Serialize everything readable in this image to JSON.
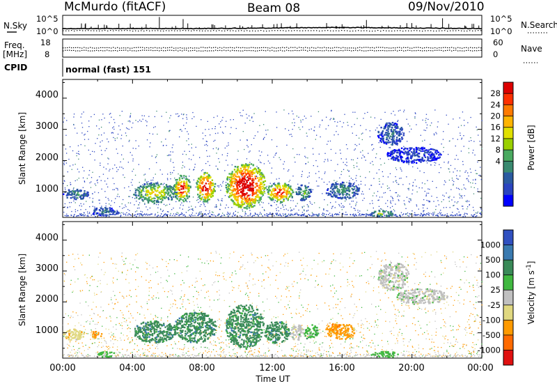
{
  "header": {
    "station": "McMurdo (fitACF)",
    "beam": "Beam 08",
    "date": "09/Nov/2010"
  },
  "panels": {
    "nsky_label": "N.Sky",
    "nsearch_label": "N.Search",
    "freq_label_line1": "Freq.",
    "freq_label_line2": "[MHz]",
    "nave_label": "Nave",
    "cpid_label": "CPID",
    "cpid_value": "normal (fast) 151",
    "nsky_ticks": [
      "10^5",
      "10^0"
    ],
    "nsearch_ticks": [
      "10^5",
      "10^0"
    ],
    "freq_ticks": [
      "18",
      "8"
    ],
    "nave_ticks": [
      "60",
      "0"
    ]
  },
  "axes": {
    "ylabel": "Slant Range [km]",
    "yticks": [
      "4000",
      "3000",
      "2000",
      "1000"
    ],
    "xlabel": "Time UT",
    "xticks": [
      "00:00",
      "04:00",
      "08:00",
      "12:00",
      "16:00",
      "20:00",
      "00:00"
    ]
  },
  "chart_data": [
    {
      "type": "heatmap",
      "title": "",
      "xlabel": "Time UT",
      "ylabel": "Slant Range [km]",
      "xlim_hours": [
        0,
        24
      ],
      "ylim_km": [
        180,
        4600
      ],
      "colorbar": {
        "label": "Power [dB]",
        "ticks": [
          "28",
          "24",
          "20",
          "16",
          "12",
          "8",
          "4"
        ],
        "colors": [
          "#dd0000",
          "#ff3000",
          "#ff7a00",
          "#ffb400",
          "#e0e000",
          "#9ad000",
          "#4aaa60",
          "#3a8a70",
          "#2a5aa0",
          "#2a44c0",
          "#0000ff"
        ]
      },
      "regions": [
        {
          "t": [
            0.0,
            1.5
          ],
          "r": [
            780,
            1120
          ],
          "level": 3
        },
        {
          "t": [
            1.5,
            3.2
          ],
          "r": [
            260,
            520
          ],
          "level": 2
        },
        {
          "t": [
            4.0,
            6.5
          ],
          "r": [
            650,
            1320
          ],
          "level": 6
        },
        {
          "t": [
            6.3,
            7.3
          ],
          "r": [
            700,
            1560
          ],
          "level": 9
        },
        {
          "t": [
            7.6,
            8.7
          ],
          "r": [
            700,
            1650
          ],
          "level": 10
        },
        {
          "t": [
            9.3,
            11.6
          ],
          "r": [
            480,
            1950
          ],
          "level": 11
        },
        {
          "t": [
            11.6,
            13.2
          ],
          "r": [
            680,
            1320
          ],
          "level": 9
        },
        {
          "t": [
            13.3,
            14.2
          ],
          "r": [
            740,
            1260
          ],
          "level": 4
        },
        {
          "t": [
            15.0,
            17.0
          ],
          "r": [
            800,
            1340
          ],
          "level": 3
        },
        {
          "t": [
            18.0,
            19.5
          ],
          "r": [
            2500,
            3250
          ],
          "level": 2
        },
        {
          "t": [
            18.5,
            21.7
          ],
          "r": [
            1950,
            2450
          ],
          "level": 1
        },
        {
          "t": [
            17.6,
            19.0
          ],
          "r": [
            220,
            440
          ],
          "level": 5
        }
      ]
    },
    {
      "type": "heatmap",
      "title": "",
      "xlabel": "Time UT",
      "ylabel": "Slant Range [km]",
      "xlim_hours": [
        0,
        24
      ],
      "ylim_km": [
        180,
        4600
      ],
      "colorbar": {
        "label": "Velocity [m s-1]",
        "ticks": [
          "1000",
          "500",
          "100",
          "25",
          "-25",
          "-100",
          "-500",
          "-1000"
        ],
        "colors": [
          "#3050c0",
          "#3a7ab0",
          "#3a8a58",
          "#40b840",
          "#c0c0c0",
          "#e0d880",
          "#ff9a00",
          "#ff6a00",
          "#e01010"
        ]
      },
      "regions": [
        {
          "t": [
            0.0,
            1.2
          ],
          "r": [
            780,
            1150
          ],
          "level": 5
        },
        {
          "t": [
            1.6,
            2.2
          ],
          "r": [
            820,
            1100
          ],
          "level": 6
        },
        {
          "t": [
            2.0,
            3.0
          ],
          "r": [
            230,
            420
          ],
          "level": 3
        },
        {
          "t": [
            4.0,
            6.5
          ],
          "r": [
            700,
            1420
          ],
          "level": 2
        },
        {
          "t": [
            6.3,
            8.8
          ],
          "r": [
            700,
            1700
          ],
          "level": 2
        },
        {
          "t": [
            9.3,
            11.5
          ],
          "r": [
            500,
            1950
          ],
          "level": 2
        },
        {
          "t": [
            11.5,
            13.0
          ],
          "r": [
            680,
            1400
          ],
          "level": 2
        },
        {
          "t": [
            13.0,
            13.8
          ],
          "r": [
            780,
            1300
          ],
          "level": 4
        },
        {
          "t": [
            13.8,
            14.6
          ],
          "r": [
            780,
            1300
          ],
          "level": 3
        },
        {
          "t": [
            15.0,
            16.7
          ],
          "r": [
            800,
            1360
          ],
          "level": 6
        },
        {
          "t": [
            18.0,
            19.8
          ],
          "r": [
            2400,
            3300
          ],
          "level": 4
        },
        {
          "t": [
            19.0,
            22.0
          ],
          "r": [
            1950,
            2450
          ],
          "level": 4
        },
        {
          "t": [
            17.6,
            19.2
          ],
          "r": [
            220,
            420
          ],
          "level": 3
        }
      ]
    }
  ],
  "colorbar_labels": {
    "power_title": "Power [dB]",
    "velocity_title": "Velocity [m s",
    "velocity_sup": "-1",
    "velocity_close": "]"
  }
}
